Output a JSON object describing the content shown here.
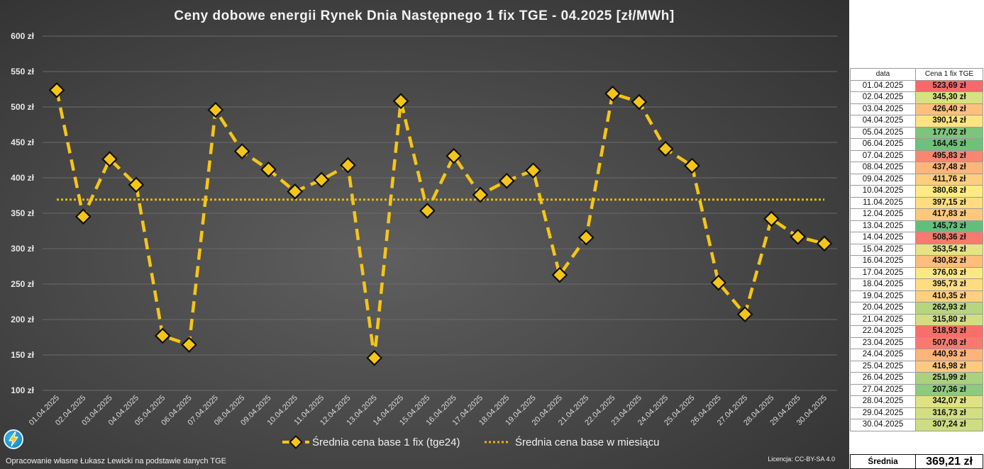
{
  "chart_data": {
    "type": "line",
    "title": "Ceny dobowe energii Rynek Dnia Następnego 1 fix TGE - 04.2025 [zł/MWh]",
    "xlabel": "",
    "ylabel": "",
    "ylim": [
      100,
      600
    ],
    "yticks": [
      "100 zł",
      "150 zł",
      "200 zł",
      "250 zł",
      "300 zł",
      "350 zł",
      "400 zł",
      "450 zł",
      "500 zł",
      "550 zł",
      "600 zł"
    ],
    "yticks_values": [
      100,
      150,
      200,
      250,
      300,
      350,
      400,
      450,
      500,
      550,
      600
    ],
    "grid": true,
    "legend_position": "bottom-center",
    "categories": [
      "01.04.2025",
      "02.04.2025",
      "03.04.2025",
      "04.04.2025",
      "05.04.2025",
      "06.04.2025",
      "07.04.2025",
      "08.04.2025",
      "09.04.2025",
      "10.04.2025",
      "11.04.2025",
      "12.04.2025",
      "13.04.2025",
      "14.04.2025",
      "15.04.2025",
      "16.04.2025",
      "17.04.2025",
      "18.04.2025",
      "19.04.2025",
      "20.04.2025",
      "21.04.2025",
      "22.04.2025",
      "23.04.2025",
      "24.04.2025",
      "25.04.2025",
      "26.04.2025",
      "27.04.2025",
      "28.04.2025",
      "29.04.2025",
      "30.04.2025"
    ],
    "series": [
      {
        "name": "Średnia cena base 1 fix (tge24)",
        "style": "dashed-line-diamond-markers",
        "color": "#F5C518",
        "values": [
          523.69,
          345.3,
          426.4,
          390.14,
          177.02,
          164.45,
          495.83,
          437.48,
          411.76,
          380.68,
          397.15,
          417.83,
          145.73,
          508.36,
          353.54,
          430.82,
          376.03,
          395.73,
          410.35,
          262.93,
          315.8,
          518.93,
          507.08,
          440.93,
          416.98,
          251.99,
          207.36,
          342.07,
          316.73,
          307.24
        ]
      },
      {
        "name": "Średnia cena base w miesiącu",
        "style": "dotted-line",
        "color": "#E8B800",
        "value": 369.21
      }
    ]
  },
  "footer": {
    "credit": "Opracowanie własne Łukasz Lewicki na podstawie danych TGE",
    "license": "Licencja: CC-BY-SA 4.0"
  },
  "table": {
    "header_date": "data",
    "header_price": "Cena 1 fix TGE",
    "rows": [
      {
        "date": "01.04.2025",
        "price": "523,69 zł",
        "color": "#F8696B"
      },
      {
        "date": "02.04.2025",
        "price": "345,30 zł",
        "color": "#D8E080"
      },
      {
        "date": "03.04.2025",
        "price": "426,40 zł",
        "color": "#FDC07C"
      },
      {
        "date": "04.04.2025",
        "price": "390,14 zł",
        "color": "#FEE382"
      },
      {
        "date": "05.04.2025",
        "price": "177,02 zł",
        "color": "#7DC57C"
      },
      {
        "date": "06.04.2025",
        "price": "164,45 zł",
        "color": "#6EC17B"
      },
      {
        "date": "07.04.2025",
        "price": "495,83 zł",
        "color": "#F98670"
      },
      {
        "date": "08.04.2025",
        "price": "437,48 zł",
        "color": "#FDB67A"
      },
      {
        "date": "09.04.2025",
        "price": "411,76 zł",
        "color": "#FECE7F"
      },
      {
        "date": "10.04.2025",
        "price": "380,68 zł",
        "color": "#FFEA84"
      },
      {
        "date": "11.04.2025",
        "price": "397,15 zł",
        "color": "#FEDC81"
      },
      {
        "date": "12.04.2025",
        "price": "417,83 zł",
        "color": "#FDC87E"
      },
      {
        "date": "13.04.2025",
        "price": "145,73 zł",
        "color": "#63BE7B"
      },
      {
        "date": "14.04.2025",
        "price": "508,36 zł",
        "color": "#F8796D"
      },
      {
        "date": "15.04.2025",
        "price": "353,54 zł",
        "color": "#E5E382"
      },
      {
        "date": "16.04.2025",
        "price": "430,82 zł",
        "color": "#FDBD7B"
      },
      {
        "date": "17.04.2025",
        "price": "376,03 zł",
        "color": "#F9E984"
      },
      {
        "date": "18.04.2025",
        "price": "395,73 zł",
        "color": "#FEDD81"
      },
      {
        "date": "19.04.2025",
        "price": "410,35 zł",
        "color": "#FED07F"
      },
      {
        "date": "20.04.2025",
        "price": "262,93 zł",
        "color": "#B6D57F"
      },
      {
        "date": "21.04.2025",
        "price": "315,80 zł",
        "color": "#D1DE81"
      },
      {
        "date": "22.04.2025",
        "price": "518,93 zł",
        "color": "#F86E6B"
      },
      {
        "date": "23.04.2025",
        "price": "507,08 zł",
        "color": "#F87A6E"
      },
      {
        "date": "24.04.2025",
        "price": "440,93 zł",
        "color": "#FDB37A"
      },
      {
        "date": "25.04.2025",
        "price": "416,98 zł",
        "color": "#FDC97E"
      },
      {
        "date": "26.04.2025",
        "price": "251,99 zł",
        "color": "#AAD17E"
      },
      {
        "date": "27.04.2025",
        "price": "207,36 zł",
        "color": "#8ECA7D"
      },
      {
        "date": "28.04.2025",
        "price": "342,07 zł",
        "color": "#DFE182"
      },
      {
        "date": "29.04.2025",
        "price": "316,73 zł",
        "color": "#D2DE81"
      },
      {
        "date": "30.04.2025",
        "price": "307,24 zł",
        "color": "#CDDD81"
      }
    ],
    "avg_label": "Średnia",
    "avg_value": "369,21 zł"
  }
}
